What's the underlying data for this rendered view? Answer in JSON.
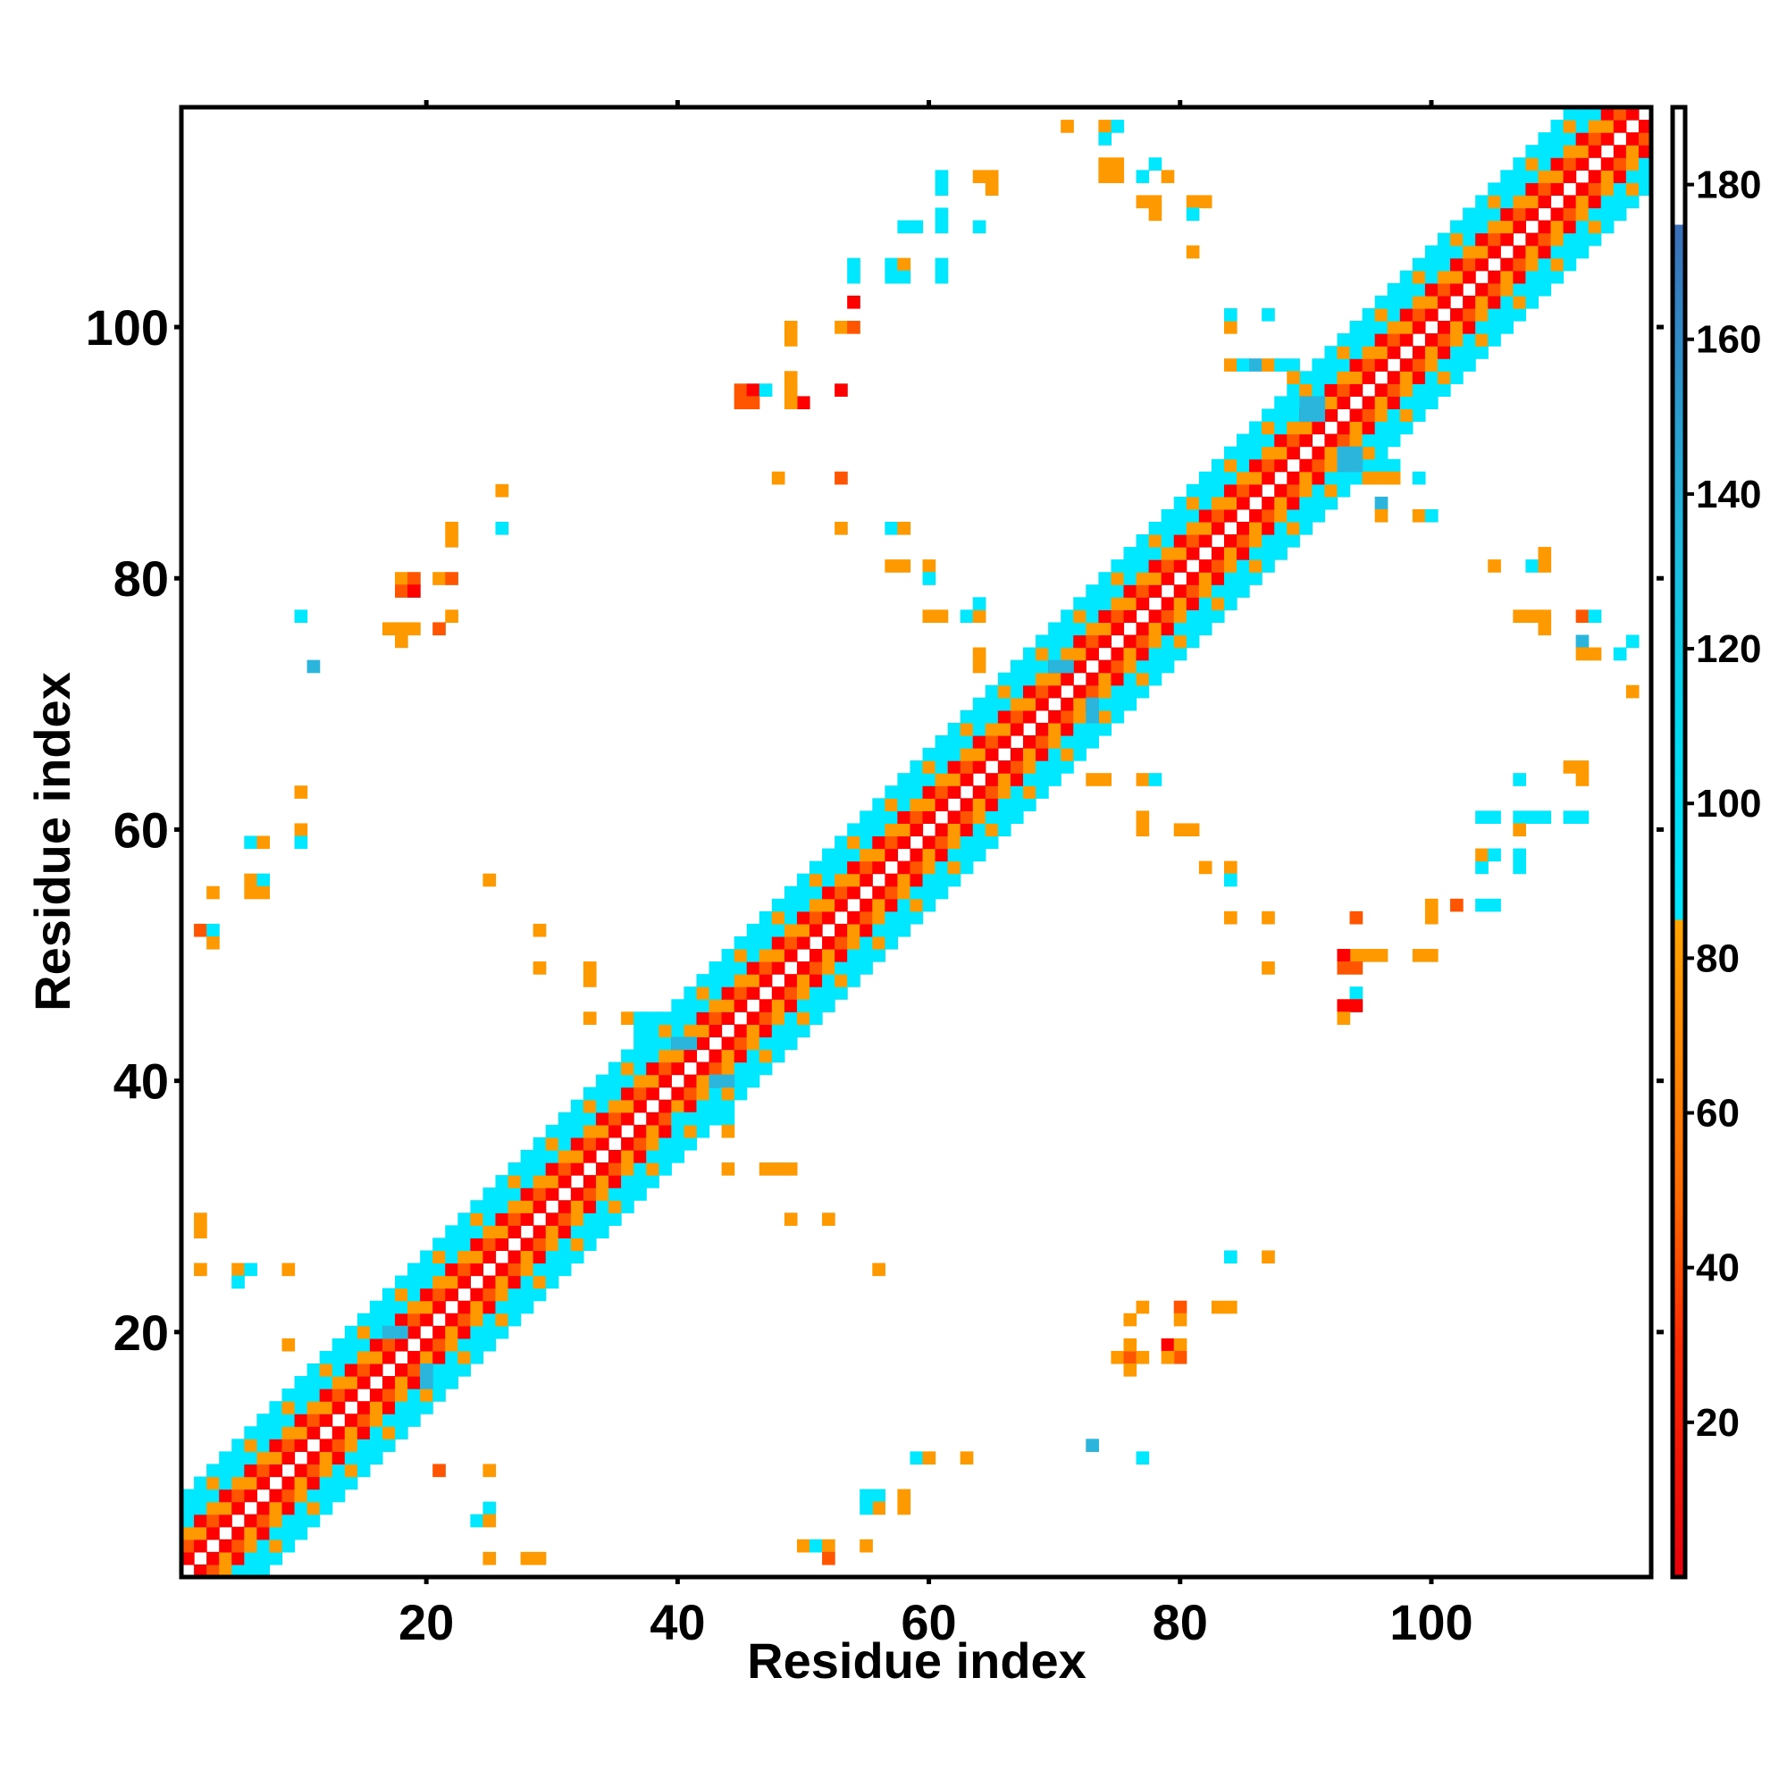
{
  "chart_data": {
    "type": "heatmap",
    "title": "",
    "xlabel": "Residue index",
    "ylabel": "Residue index",
    "n_residues": 117,
    "xlim": [
      0.5,
      117.5
    ],
    "ylim": [
      0.5,
      117.5
    ],
    "x_ticks": [
      20,
      40,
      60,
      80,
      100
    ],
    "y_ticks": [
      20,
      40,
      60,
      80,
      100
    ],
    "colorbar": {
      "range": [
        0,
        190
      ],
      "ticks": [
        20,
        40,
        60,
        80,
        100,
        120,
        140,
        160,
        180
      ],
      "stops": [
        {
          "value": 0,
          "color": "#e8000b"
        },
        {
          "value": 30,
          "color": "#ff2a00"
        },
        {
          "value": 50,
          "color": "#ff6a00"
        },
        {
          "value": 85,
          "color": "#ffa500"
        },
        {
          "value": 88,
          "color": "#00e5ff"
        },
        {
          "value": 110,
          "color": "#00d8f0"
        },
        {
          "value": 135,
          "color": "#20b8dc"
        },
        {
          "value": 175,
          "color": "#3a6fb8"
        },
        {
          "value": 190,
          "color": "#ffffff"
        }
      ]
    },
    "cell_colors": {
      "1": "#ff0000",
      "2": "#ff5500",
      "3": "#ff9900",
      "4": "#00e8ff",
      "5": "#2bb5dc"
    },
    "band_pattern": {
      "description": "diagonal contact band, offsets |i-j| 1..6 with class pattern",
      "offset_classes": [
        0,
        1,
        2,
        3,
        4,
        4
      ],
      "segments": [
        {
          "start": 1,
          "end": 40,
          "width": 6
        },
        {
          "start": 40,
          "end": 90,
          "width": 6
        },
        {
          "start": 90,
          "end": 117,
          "width": 6
        }
      ]
    },
    "off_diagonal_cells": [
      [
        71,
        116,
        3
      ],
      [
        74,
        116,
        3
      ],
      [
        75,
        116,
        4
      ],
      [
        74,
        115,
        4
      ],
      [
        74,
        113,
        3
      ],
      [
        75,
        113,
        3
      ],
      [
        74,
        112,
        3
      ],
      [
        75,
        112,
        3
      ],
      [
        77,
        112,
        4
      ],
      [
        79,
        112,
        3
      ],
      [
        78,
        113,
        4
      ],
      [
        61,
        112,
        4
      ],
      [
        61,
        111,
        4
      ],
      [
        64,
        112,
        3
      ],
      [
        65,
        112,
        3
      ],
      [
        65,
        111,
        3
      ],
      [
        58,
        108,
        4
      ],
      [
        59,
        108,
        4
      ],
      [
        61,
        108,
        4
      ],
      [
        61,
        109,
        4
      ],
      [
        64,
        108,
        4
      ],
      [
        54,
        105,
        4
      ],
      [
        54,
        104,
        4
      ],
      [
        57,
        105,
        4
      ],
      [
        58,
        105,
        3
      ],
      [
        57,
        104,
        4
      ],
      [
        58,
        104,
        4
      ],
      [
        61,
        105,
        4
      ],
      [
        61,
        104,
        4
      ],
      [
        54,
        102,
        1
      ],
      [
        49,
        100,
        3
      ],
      [
        49,
        99,
        3
      ],
      [
        53,
        100,
        3
      ],
      [
        54,
        100,
        2
      ],
      [
        45,
        95,
        2
      ],
      [
        46,
        95,
        1
      ],
      [
        46,
        94,
        2
      ],
      [
        47,
        95,
        4
      ],
      [
        49,
        96,
        3
      ],
      [
        49,
        95,
        3
      ],
      [
        50,
        94,
        1
      ],
      [
        49,
        94,
        3
      ],
      [
        53,
        95,
        1
      ],
      [
        45,
        94,
        2
      ],
      [
        48,
        88,
        3
      ],
      [
        53,
        88,
        2
      ],
      [
        53,
        84,
        3
      ],
      [
        57,
        84,
        4
      ],
      [
        58,
        84,
        3
      ],
      [
        57,
        81,
        3
      ],
      [
        58,
        81,
        3
      ],
      [
        60,
        81,
        3
      ],
      [
        60,
        80,
        4
      ],
      [
        60,
        77,
        3
      ],
      [
        61,
        77,
        3
      ],
      [
        63,
        77,
        4
      ],
      [
        64,
        77,
        3
      ],
      [
        64,
        78,
        4
      ],
      [
        64,
        74,
        3
      ],
      [
        64,
        73,
        3
      ],
      [
        77,
        110,
        3
      ],
      [
        78,
        110,
        3
      ],
      [
        78,
        109,
        3
      ],
      [
        81,
        110,
        3
      ],
      [
        82,
        110,
        3
      ],
      [
        81,
        109,
        4
      ],
      [
        81,
        106,
        3
      ],
      [
        84,
        100,
        3
      ],
      [
        84,
        101,
        4
      ],
      [
        87,
        101,
        4
      ],
      [
        84,
        97,
        3
      ],
      [
        85,
        97,
        4
      ],
      [
        86,
        97,
        5
      ],
      [
        87,
        97,
        3
      ],
      [
        88,
        97,
        4
      ],
      [
        89,
        97,
        4
      ],
      [
        89,
        96,
        3
      ],
      [
        96,
        89,
        4
      ],
      [
        97,
        89,
        4
      ],
      [
        95,
        88,
        3
      ],
      [
        96,
        88,
        3
      ],
      [
        97,
        88,
        3
      ],
      [
        96,
        86,
        5
      ],
      [
        96,
        85,
        3
      ],
      [
        99,
        88,
        4
      ],
      [
        99,
        85,
        3
      ],
      [
        100,
        85,
        4
      ],
      [
        105,
        81,
        3
      ],
      [
        108,
        81,
        4
      ],
      [
        109,
        81,
        3
      ],
      [
        109,
        82,
        3
      ],
      [
        107,
        77,
        3
      ],
      [
        108,
        77,
        3
      ],
      [
        109,
        77,
        3
      ],
      [
        109,
        76,
        3
      ],
      [
        112,
        77,
        2
      ],
      [
        113,
        77,
        4
      ],
      [
        112,
        75,
        5
      ],
      [
        112,
        74,
        3
      ],
      [
        113,
        74,
        3
      ],
      [
        115,
        74,
        4
      ],
      [
        116,
        75,
        4
      ],
      [
        116,
        71,
        3
      ],
      [
        18,
        80,
        3
      ],
      [
        19,
        80,
        2
      ],
      [
        21,
        80,
        3
      ],
      [
        22,
        80,
        2
      ],
      [
        18,
        79,
        2
      ],
      [
        19,
        79,
        1
      ],
      [
        17,
        76,
        3
      ],
      [
        18,
        76,
        3
      ],
      [
        19,
        76,
        3
      ],
      [
        21,
        76,
        2
      ],
      [
        22,
        77,
        3
      ],
      [
        18,
        75,
        3
      ],
      [
        22,
        84,
        3
      ],
      [
        22,
        83,
        3
      ],
      [
        26,
        87,
        3
      ],
      [
        26,
        84,
        4
      ],
      [
        10,
        77,
        4
      ],
      [
        11,
        73,
        5
      ],
      [
        2,
        52,
        2
      ],
      [
        3,
        52,
        4
      ],
      [
        3,
        51,
        3
      ],
      [
        3,
        55,
        3
      ],
      [
        6,
        59,
        4
      ],
      [
        7,
        59,
        3
      ],
      [
        6,
        56,
        3
      ],
      [
        7,
        56,
        4
      ],
      [
        6,
        55,
        3
      ],
      [
        7,
        55,
        3
      ],
      [
        10,
        63,
        3
      ],
      [
        10,
        60,
        3
      ],
      [
        10,
        59,
        4
      ],
      [
        25,
        56,
        3
      ],
      [
        29,
        52,
        3
      ],
      [
        29,
        49,
        3
      ],
      [
        33,
        49,
        3
      ],
      [
        33,
        48,
        3
      ],
      [
        33,
        45,
        3
      ],
      [
        36,
        45,
        3
      ],
      [
        37,
        45,
        4
      ],
      [
        37,
        44,
        4
      ],
      [
        38,
        45,
        4
      ],
      [
        40,
        37,
        4
      ],
      [
        41,
        37,
        4
      ],
      [
        43,
        37,
        4
      ],
      [
        44,
        37,
        4
      ],
      [
        44,
        36,
        3
      ],
      [
        44,
        33,
        3
      ],
      [
        47,
        33,
        3
      ],
      [
        48,
        33,
        3
      ],
      [
        49,
        33,
        3
      ],
      [
        49,
        29,
        3
      ],
      [
        52,
        29,
        3
      ],
      [
        56,
        25,
        3
      ],
      [
        2,
        29,
        3
      ],
      [
        2,
        28,
        3
      ],
      [
        2,
        25,
        3
      ],
      [
        5,
        25,
        3
      ],
      [
        6,
        25,
        4
      ],
      [
        5,
        24,
        4
      ],
      [
        9,
        25,
        3
      ],
      [
        9,
        19,
        3
      ],
      [
        21,
        9,
        2
      ],
      [
        25,
        9,
        3
      ],
      [
        25,
        6,
        4
      ],
      [
        24,
        5,
        4
      ],
      [
        25,
        5,
        3
      ],
      [
        25,
        2,
        3
      ],
      [
        28,
        2,
        3
      ],
      [
        29,
        2,
        3
      ],
      [
        50,
        3,
        3
      ],
      [
        51,
        3,
        4
      ],
      [
        52,
        3,
        3
      ],
      [
        52,
        2,
        2
      ],
      [
        55,
        3,
        3
      ],
      [
        56,
        7,
        4
      ],
      [
        55,
        7,
        4
      ],
      [
        56,
        6,
        3
      ],
      [
        55,
        6,
        4
      ],
      [
        58,
        7,
        3
      ],
      [
        58,
        6,
        3
      ],
      [
        59,
        10,
        4
      ],
      [
        60,
        10,
        3
      ],
      [
        63,
        10,
        3
      ],
      [
        73,
        11,
        5
      ],
      [
        77,
        10,
        4
      ],
      [
        77,
        22,
        3
      ],
      [
        76,
        21,
        3
      ],
      [
        80,
        22,
        2
      ],
      [
        80,
        21,
        3
      ],
      [
        83,
        22,
        3
      ],
      [
        84,
        22,
        3
      ],
      [
        84,
        26,
        4
      ],
      [
        87,
        26,
        3
      ],
      [
        75,
        18,
        3
      ],
      [
        76,
        18,
        2
      ],
      [
        77,
        18,
        3
      ],
      [
        76,
        19,
        3
      ],
      [
        76,
        17,
        3
      ],
      [
        79,
        19,
        1
      ],
      [
        80,
        19,
        3
      ],
      [
        80,
        18,
        2
      ],
      [
        79,
        18,
        3
      ],
      [
        94,
        53,
        2
      ],
      [
        94,
        50,
        3
      ],
      [
        95,
        50,
        3
      ],
      [
        96,
        50,
        3
      ],
      [
        99,
        50,
        3
      ],
      [
        100,
        50,
        3
      ],
      [
        100,
        53,
        3
      ],
      [
        100,
        54,
        3
      ],
      [
        102,
        54,
        2
      ],
      [
        93,
        50,
        1
      ],
      [
        93,
        49,
        2
      ],
      [
        94,
        49,
        2
      ],
      [
        94,
        47,
        4
      ],
      [
        94,
        46,
        1
      ],
      [
        93,
        46,
        1
      ],
      [
        93,
        45,
        3
      ],
      [
        104,
        54,
        4
      ],
      [
        105,
        54,
        4
      ],
      [
        104,
        57,
        4
      ],
      [
        104,
        58,
        3
      ],
      [
        105,
        58,
        4
      ],
      [
        107,
        58,
        4
      ],
      [
        107,
        57,
        4
      ],
      [
        104,
        61,
        4
      ],
      [
        105,
        61,
        4
      ],
      [
        107,
        61,
        4
      ],
      [
        108,
        61,
        4
      ],
      [
        109,
        61,
        4
      ],
      [
        111,
        61,
        4
      ],
      [
        112,
        61,
        4
      ],
      [
        107,
        60,
        3
      ],
      [
        107,
        64,
        4
      ],
      [
        111,
        65,
        3
      ],
      [
        112,
        65,
        3
      ],
      [
        112,
        64,
        3
      ],
      [
        84,
        57,
        3
      ],
      [
        84,
        56,
        4
      ],
      [
        82,
        57,
        3
      ],
      [
        84,
        53,
        3
      ],
      [
        87,
        53,
        3
      ],
      [
        87,
        49,
        3
      ],
      [
        80,
        60,
        3
      ],
      [
        81,
        60,
        3
      ],
      [
        77,
        60,
        3
      ],
      [
        77,
        61,
        3
      ],
      [
        77,
        64,
        3
      ],
      [
        78,
        64,
        4
      ],
      [
        73,
        64,
        3
      ],
      [
        74,
        64,
        3
      ],
      [
        90,
        94,
        5
      ],
      [
        91,
        94,
        5
      ],
      [
        90,
        93,
        5
      ],
      [
        91,
        93,
        5
      ],
      [
        93,
        89,
        5
      ],
      [
        94,
        89,
        5
      ],
      [
        93,
        90,
        5
      ],
      [
        94,
        90,
        5
      ],
      [
        40,
        43,
        5
      ],
      [
        41,
        43,
        5
      ],
      [
        43,
        40,
        5
      ],
      [
        44,
        40,
        5
      ],
      [
        70,
        73,
        5
      ],
      [
        71,
        73,
        5
      ],
      [
        73,
        70,
        5
      ],
      [
        73,
        69,
        5
      ],
      [
        17,
        20,
        5
      ],
      [
        18,
        20,
        5
      ],
      [
        20,
        17,
        5
      ],
      [
        20,
        16,
        5
      ]
    ]
  }
}
